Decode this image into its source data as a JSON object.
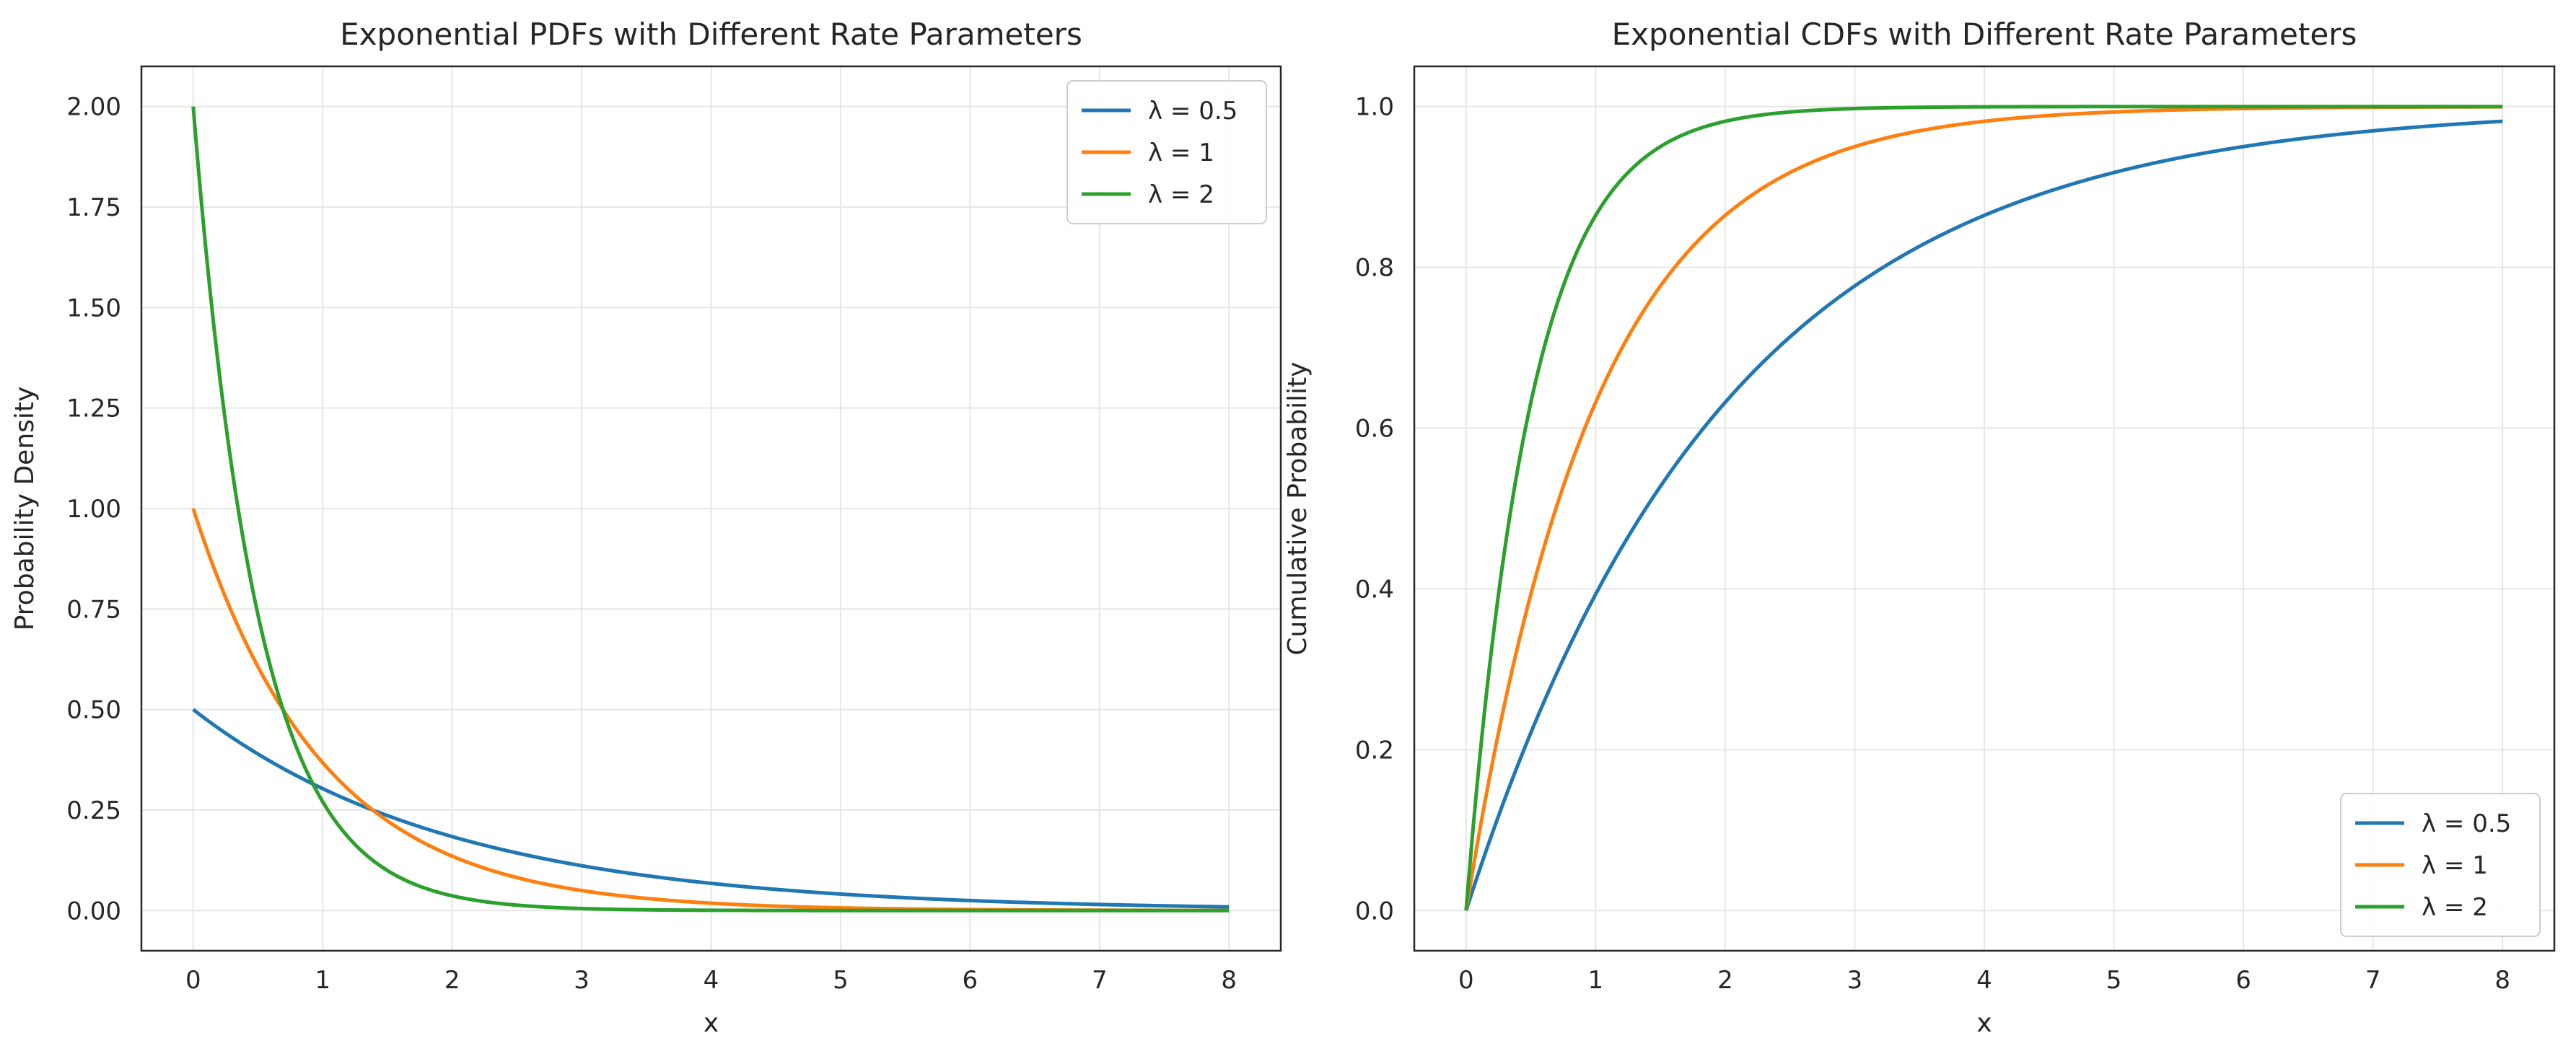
{
  "chart_data": [
    {
      "type": "line",
      "title": "Exponential PDFs with Different Rate Parameters",
      "xlabel": "x",
      "ylabel": "Probability Density",
      "xlim": [
        -0.4,
        8.4
      ],
      "ylim": [
        -0.1,
        2.1
      ],
      "xticks": [
        0,
        1,
        2,
        3,
        4,
        5,
        6,
        7,
        8
      ],
      "yticks": [
        0.0,
        0.25,
        0.5,
        0.75,
        1.0,
        1.25,
        1.5,
        1.75,
        2.0
      ],
      "ytick_labels": [
        "0.00",
        "0.25",
        "0.50",
        "0.75",
        "1.00",
        "1.25",
        "1.50",
        "1.75",
        "2.00"
      ],
      "grid": true,
      "legend_position": "top-right",
      "x": [
        0,
        0.25,
        0.5,
        0.75,
        1,
        1.25,
        1.5,
        1.75,
        2,
        2.5,
        3,
        3.5,
        4,
        4.5,
        5,
        5.5,
        6,
        6.5,
        7,
        7.5,
        8
      ],
      "series": [
        {
          "name": "λ = 0.5",
          "color": "#1f77b4",
          "values": [
            0.5,
            0.441,
            0.389,
            0.344,
            0.303,
            0.268,
            0.236,
            0.208,
            0.184,
            0.143,
            0.112,
            0.087,
            0.068,
            0.053,
            0.041,
            0.032,
            0.025,
            0.019,
            0.015,
            0.012,
            0.009
          ]
        },
        {
          "name": "λ = 1",
          "color": "#ff7f0e",
          "values": [
            1.0,
            0.779,
            0.607,
            0.472,
            0.368,
            0.287,
            0.223,
            0.174,
            0.135,
            0.082,
            0.05,
            0.03,
            0.018,
            0.011,
            0.007,
            0.004,
            0.002,
            0.002,
            0.001,
            0.001,
            0.0
          ]
        },
        {
          "name": "λ = 2",
          "color": "#2ca02c",
          "values": [
            2.0,
            1.213,
            0.736,
            0.446,
            0.271,
            0.164,
            0.1,
            0.06,
            0.037,
            0.013,
            0.005,
            0.002,
            0.001,
            0.0,
            0.0,
            0.0,
            0.0,
            0.0,
            0.0,
            0.0,
            0.0
          ]
        }
      ]
    },
    {
      "type": "line",
      "title": "Exponential CDFs with Different Rate Parameters",
      "xlabel": "x",
      "ylabel": "Cumulative Probability",
      "xlim": [
        -0.4,
        8.4
      ],
      "ylim": [
        -0.05,
        1.05
      ],
      "xticks": [
        0,
        1,
        2,
        3,
        4,
        5,
        6,
        7,
        8
      ],
      "yticks": [
        0.0,
        0.2,
        0.4,
        0.6,
        0.8,
        1.0
      ],
      "ytick_labels": [
        "0.0",
        "0.2",
        "0.4",
        "0.6",
        "0.8",
        "1.0"
      ],
      "grid": true,
      "legend_position": "bottom-right",
      "x": [
        0,
        0.25,
        0.5,
        0.75,
        1,
        1.25,
        1.5,
        1.75,
        2,
        2.5,
        3,
        3.5,
        4,
        4.5,
        5,
        5.5,
        6,
        6.5,
        7,
        7.5,
        8
      ],
      "series": [
        {
          "name": "λ = 0.5",
          "color": "#1f77b4",
          "values": [
            0.0,
            0.118,
            0.221,
            0.313,
            0.393,
            0.465,
            0.528,
            0.583,
            0.632,
            0.713,
            0.777,
            0.826,
            0.865,
            0.895,
            0.918,
            0.936,
            0.95,
            0.961,
            0.97,
            0.976,
            0.982
          ]
        },
        {
          "name": "λ = 1",
          "color": "#ff7f0e",
          "values": [
            0.0,
            0.221,
            0.393,
            0.528,
            0.632,
            0.713,
            0.777,
            0.826,
            0.865,
            0.918,
            0.95,
            0.97,
            0.982,
            0.989,
            0.993,
            0.996,
            0.998,
            0.998,
            0.999,
            0.999,
            1.0
          ]
        },
        {
          "name": "λ = 2",
          "color": "#2ca02c",
          "values": [
            0.0,
            0.393,
            0.632,
            0.777,
            0.865,
            0.918,
            0.95,
            0.97,
            0.982,
            0.993,
            0.998,
            0.999,
            1.0,
            1.0,
            1.0,
            1.0,
            1.0,
            1.0,
            1.0,
            1.0,
            1.0
          ]
        }
      ]
    }
  ]
}
